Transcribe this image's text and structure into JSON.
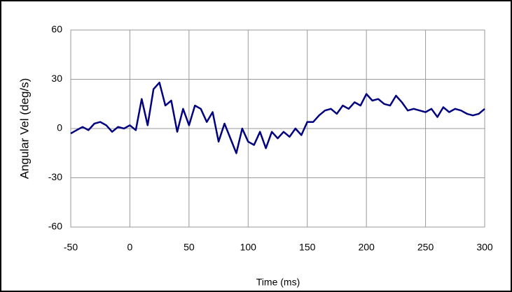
{
  "chart_data": {
    "type": "line",
    "xlabel": "Time (ms)",
    "ylabel": "Angular Vel (deg/s)",
    "x": [
      -50,
      -45,
      -40,
      -35,
      -30,
      -25,
      -20,
      -15,
      -10,
      -5,
      0,
      5,
      10,
      15,
      20,
      25,
      30,
      35,
      40,
      45,
      50,
      55,
      60,
      65,
      70,
      75,
      80,
      85,
      90,
      95,
      100,
      105,
      110,
      115,
      120,
      125,
      130,
      135,
      140,
      145,
      150,
      155,
      160,
      165,
      170,
      175,
      180,
      185,
      190,
      195,
      200,
      205,
      210,
      215,
      220,
      225,
      230,
      235,
      240,
      245,
      250,
      255,
      260,
      265,
      270,
      275,
      280,
      285,
      290,
      295,
      300
    ],
    "series": [
      {
        "name": "Angular Vel",
        "color": "#000080",
        "values": [
          -3,
          -1,
          1,
          -1,
          3,
          4,
          2,
          -2,
          1,
          0,
          2,
          -1,
          18,
          2,
          24,
          28,
          14,
          17,
          -2,
          12,
          2,
          14,
          12,
          4,
          10,
          -8,
          3,
          -6,
          -15,
          0,
          -8,
          -10,
          -2,
          -12,
          -2,
          -6,
          -2,
          -5,
          0,
          -4,
          4,
          4,
          8,
          11,
          12,
          9,
          14,
          12,
          16,
          14,
          21,
          17,
          18,
          15,
          14,
          20,
          16,
          11,
          12,
          11,
          10,
          12,
          7,
          13,
          10,
          12,
          11,
          9,
          8,
          9,
          12
        ]
      }
    ],
    "xlim": [
      -50,
      300
    ],
    "xticks": [
      -50,
      0,
      50,
      100,
      150,
      200,
      250,
      300
    ],
    "ylim": [
      -60,
      60
    ],
    "yticks": [
      -60,
      -30,
      0,
      30,
      60
    ],
    "grid": true
  }
}
